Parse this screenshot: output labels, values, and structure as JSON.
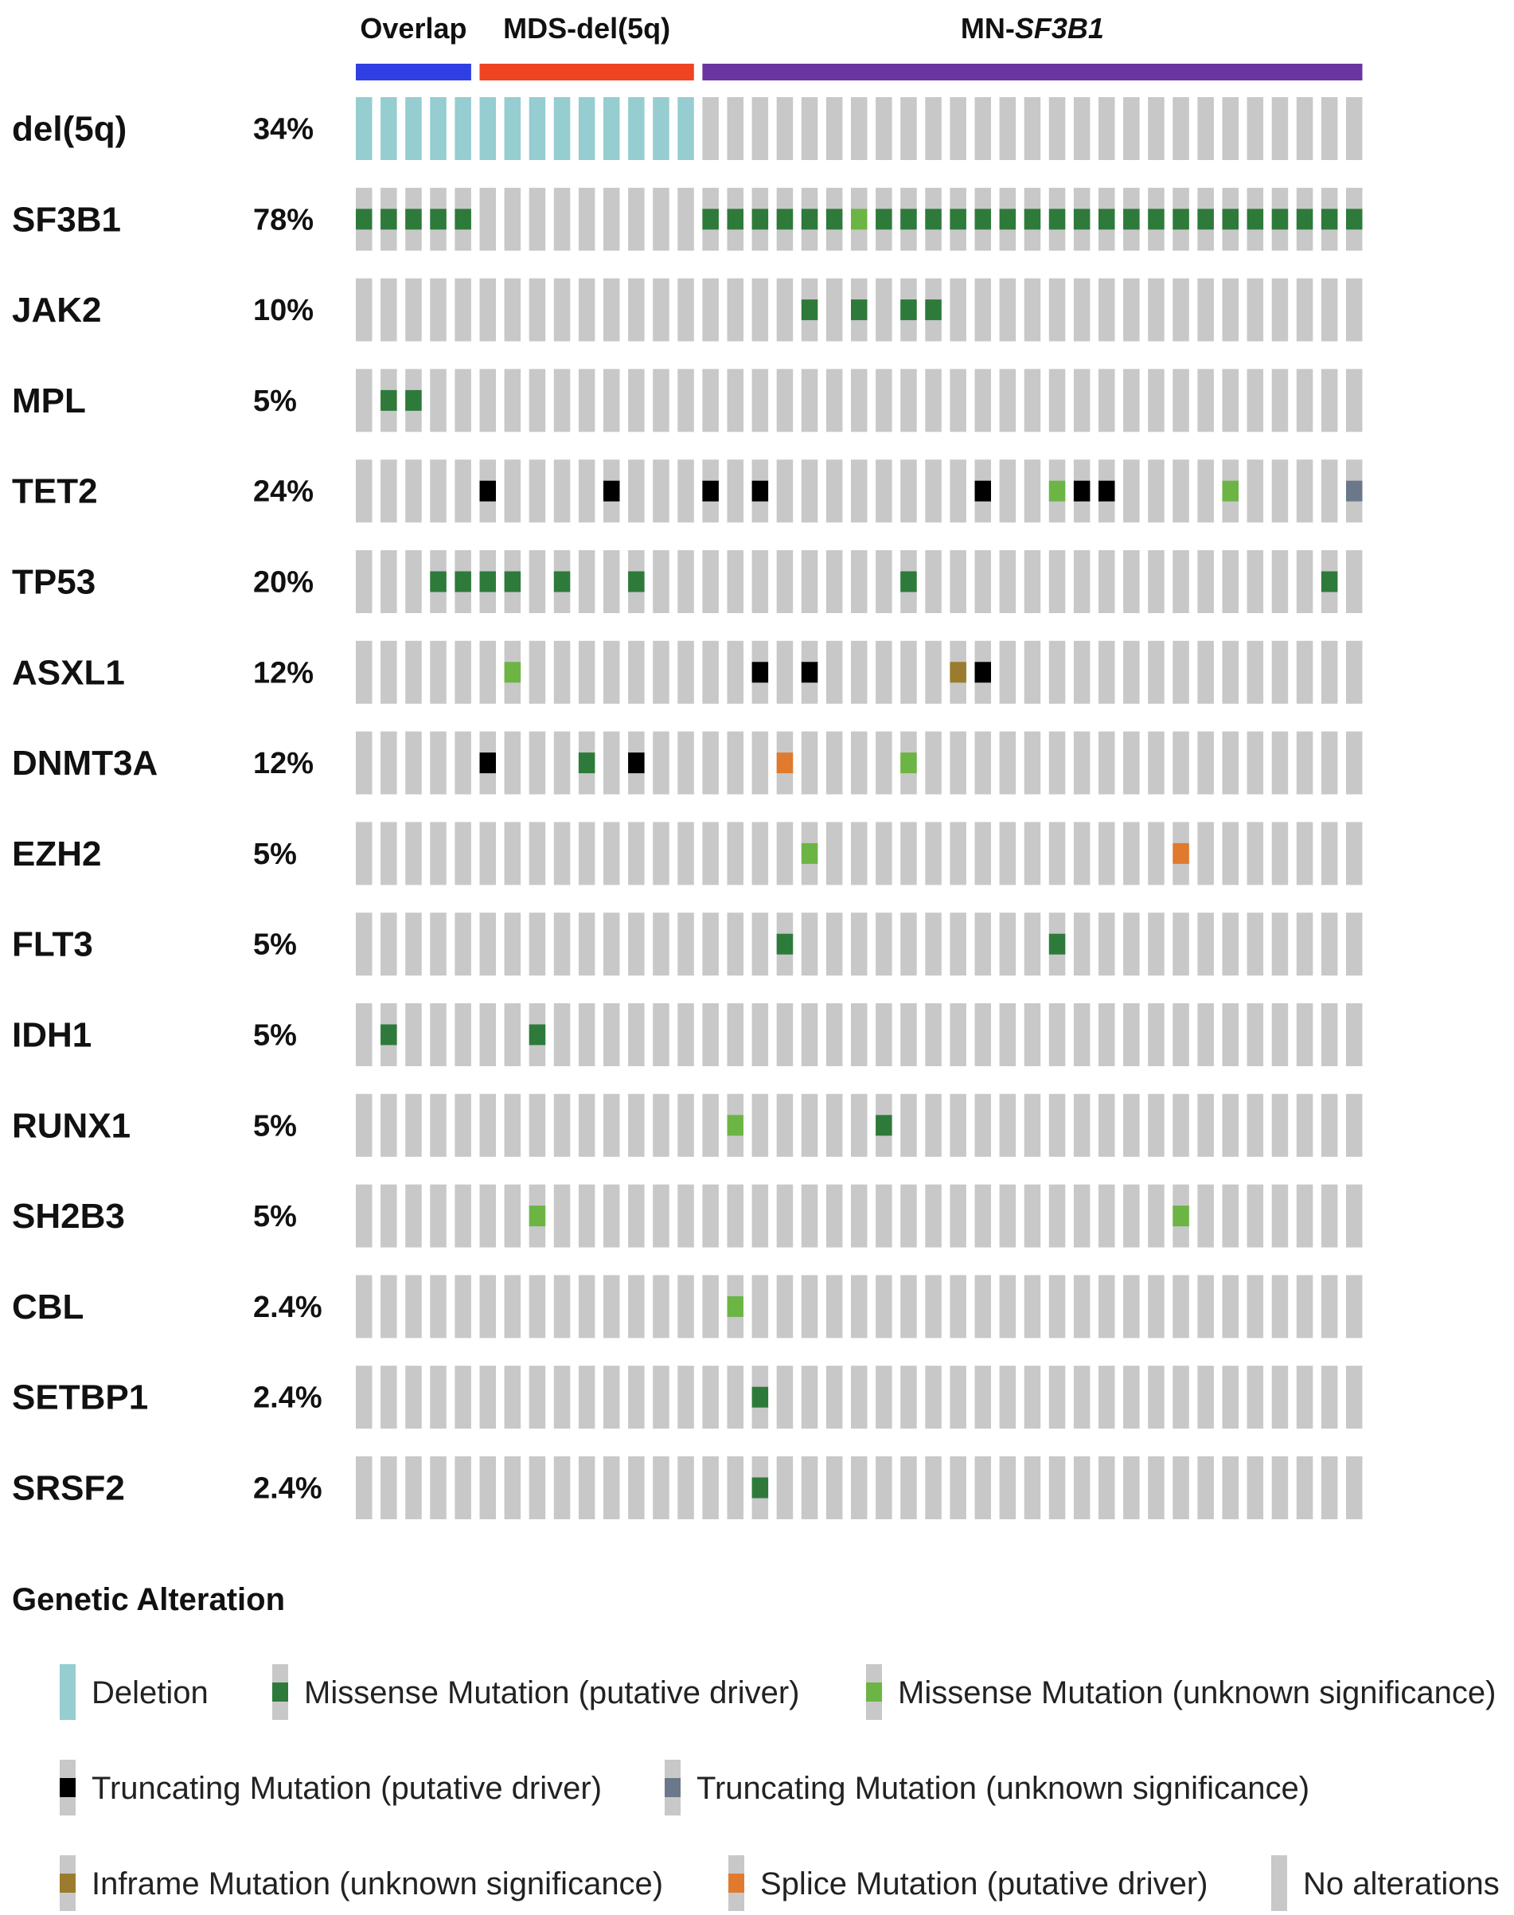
{
  "chart_data": {
    "type": "oncoprint",
    "sample_count": 41,
    "groups": [
      {
        "name_plain": "Overlap",
        "name_italic": "",
        "start": 0,
        "end": 4,
        "color": "#2f3fe3"
      },
      {
        "name_plain": "MDS-del(5q)",
        "name_italic": "",
        "start": 5,
        "end": 13,
        "color": "#ee4422"
      },
      {
        "name_plain": "MN-",
        "name_italic": "SF3B1",
        "start": 14,
        "end": 40,
        "color": "#6a35a0"
      }
    ],
    "genes": [
      {
        "name": "del(5q)",
        "percent": "34%",
        "alterations": [
          [
            0,
            "del"
          ],
          [
            1,
            "del"
          ],
          [
            2,
            "del"
          ],
          [
            3,
            "del"
          ],
          [
            4,
            "del"
          ],
          [
            5,
            "del"
          ],
          [
            6,
            "del"
          ],
          [
            7,
            "del"
          ],
          [
            8,
            "del"
          ],
          [
            9,
            "del"
          ],
          [
            10,
            "del"
          ],
          [
            11,
            "del"
          ],
          [
            12,
            "del"
          ],
          [
            13,
            "del"
          ]
        ]
      },
      {
        "name": "SF3B1",
        "percent": "78%",
        "alterations": [
          [
            0,
            "mis_d"
          ],
          [
            1,
            "mis_d"
          ],
          [
            2,
            "mis_d"
          ],
          [
            3,
            "mis_d"
          ],
          [
            4,
            "mis_d"
          ],
          [
            14,
            "mis_d"
          ],
          [
            15,
            "mis_d"
          ],
          [
            16,
            "mis_d"
          ],
          [
            17,
            "mis_d"
          ],
          [
            18,
            "mis_d"
          ],
          [
            19,
            "mis_d"
          ],
          [
            20,
            "mis_u"
          ],
          [
            21,
            "mis_d"
          ],
          [
            22,
            "mis_d"
          ],
          [
            23,
            "mis_d"
          ],
          [
            24,
            "mis_d"
          ],
          [
            25,
            "mis_d"
          ],
          [
            26,
            "mis_d"
          ],
          [
            27,
            "mis_d"
          ],
          [
            28,
            "mis_d"
          ],
          [
            29,
            "mis_d"
          ],
          [
            30,
            "mis_d"
          ],
          [
            31,
            "mis_d"
          ],
          [
            32,
            "mis_d"
          ],
          [
            33,
            "mis_d"
          ],
          [
            34,
            "mis_d"
          ],
          [
            35,
            "mis_d"
          ],
          [
            36,
            "mis_d"
          ],
          [
            37,
            "mis_d"
          ],
          [
            38,
            "mis_d"
          ],
          [
            39,
            "mis_d"
          ],
          [
            40,
            "mis_d"
          ]
        ]
      },
      {
        "name": "JAK2",
        "percent": "10%",
        "alterations": [
          [
            18,
            "mis_d"
          ],
          [
            20,
            "mis_d"
          ],
          [
            22,
            "mis_d"
          ],
          [
            23,
            "mis_d"
          ]
        ]
      },
      {
        "name": "MPL",
        "percent": "5%",
        "alterations": [
          [
            1,
            "mis_d"
          ],
          [
            2,
            "mis_d"
          ]
        ]
      },
      {
        "name": "TET2",
        "percent": "24%",
        "alterations": [
          [
            5,
            "trunc_d"
          ],
          [
            10,
            "trunc_d"
          ],
          [
            14,
            "trunc_d"
          ],
          [
            16,
            "trunc_d"
          ],
          [
            25,
            "trunc_d"
          ],
          [
            28,
            "mis_u"
          ],
          [
            29,
            "trunc_d"
          ],
          [
            30,
            "trunc_d"
          ],
          [
            35,
            "mis_u"
          ],
          [
            40,
            "trunc_u"
          ]
        ]
      },
      {
        "name": "TP53",
        "percent": "20%",
        "alterations": [
          [
            3,
            "mis_d"
          ],
          [
            4,
            "mis_d"
          ],
          [
            5,
            "mis_d"
          ],
          [
            6,
            "mis_d"
          ],
          [
            8,
            "mis_d"
          ],
          [
            11,
            "mis_d"
          ],
          [
            22,
            "mis_d"
          ],
          [
            39,
            "mis_d"
          ]
        ]
      },
      {
        "name": "ASXL1",
        "percent": "12%",
        "alterations": [
          [
            6,
            "mis_u"
          ],
          [
            16,
            "trunc_d"
          ],
          [
            18,
            "trunc_d"
          ],
          [
            24,
            "inframe"
          ],
          [
            25,
            "trunc_d"
          ]
        ]
      },
      {
        "name": "DNMT3A",
        "percent": "12%",
        "alterations": [
          [
            5,
            "trunc_d"
          ],
          [
            9,
            "mis_d"
          ],
          [
            11,
            "trunc_d"
          ],
          [
            17,
            "splice"
          ],
          [
            22,
            "mis_u"
          ]
        ]
      },
      {
        "name": "EZH2",
        "percent": "5%",
        "alterations": [
          [
            18,
            "mis_u"
          ],
          [
            33,
            "splice"
          ]
        ]
      },
      {
        "name": "FLT3",
        "percent": "5%",
        "alterations": [
          [
            17,
            "mis_d"
          ],
          [
            28,
            "mis_d"
          ]
        ]
      },
      {
        "name": "IDH1",
        "percent": "5%",
        "alterations": [
          [
            1,
            "mis_d"
          ],
          [
            7,
            "mis_d"
          ]
        ]
      },
      {
        "name": "RUNX1",
        "percent": "5%",
        "alterations": [
          [
            15,
            "mis_u"
          ],
          [
            21,
            "mis_d"
          ]
        ]
      },
      {
        "name": "SH2B3",
        "percent": "5%",
        "alterations": [
          [
            7,
            "mis_u"
          ],
          [
            33,
            "mis_u"
          ]
        ]
      },
      {
        "name": "CBL",
        "percent": "2.4%",
        "alterations": [
          [
            15,
            "mis_u"
          ]
        ]
      },
      {
        "name": "SETBP1",
        "percent": "2.4%",
        "alterations": [
          [
            16,
            "mis_d"
          ]
        ]
      },
      {
        "name": "SRSF2",
        "percent": "2.4%",
        "alterations": [
          [
            16,
            "mis_d"
          ]
        ]
      }
    ],
    "alteration_types": {
      "del": {
        "label": "Deletion",
        "color": "#95cdd0",
        "full": true
      },
      "mis_d": {
        "label": "Missense Mutation (putative driver)",
        "color": "#2e7a3a",
        "full": false
      },
      "mis_u": {
        "label": "Missense Mutation (unknown significance)",
        "color": "#6cb544",
        "full": false
      },
      "trunc_d": {
        "label": "Truncating Mutation (putative driver)",
        "color": "#000000",
        "full": false
      },
      "trunc_u": {
        "label": "Truncating Mutation (unknown significance)",
        "color": "#6b7889",
        "full": false
      },
      "inframe": {
        "label": "Inframe Mutation (unknown significance)",
        "color": "#9b7b2e",
        "full": false
      },
      "splice": {
        "label": "Splice Mutation (putative driver)",
        "color": "#e07a2e",
        "full": false
      },
      "none": {
        "label": "No alterations",
        "color": "#c8c8c8",
        "full": true
      }
    },
    "legend": {
      "title": "Genetic Alteration",
      "rows": [
        [
          "del",
          "mis_d",
          "mis_u"
        ],
        [
          "trunc_d",
          "trunc_u"
        ],
        [
          "inframe",
          "splice",
          "none"
        ]
      ]
    }
  }
}
